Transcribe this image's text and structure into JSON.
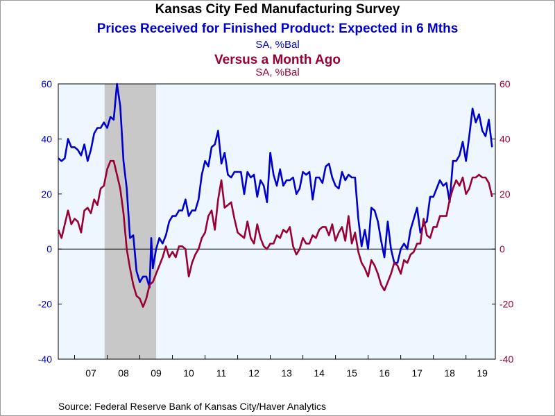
{
  "titles": {
    "main": "Kansas City Fed Manufacturing Survey",
    "series1": "Prices Received for Finished Product: Expected in 6 Mths",
    "series1_units": "SA, %Bal",
    "series2": "Versus a Month Ago",
    "series2_units": "SA, %Bal"
  },
  "source": "Source:  Federal Reserve Bank of Kansas City/Haver Analytics",
  "colors": {
    "series1": "#0000cc",
    "series2": "#990033",
    "plot_background": "#eef6ff",
    "recession": "#c8c8c8"
  },
  "chart_data": {
    "type": "line",
    "x_label_ticks": [
      "07",
      "08",
      "09",
      "10",
      "11",
      "12",
      "13",
      "14",
      "15",
      "16",
      "17",
      "18",
      "19"
    ],
    "x_range": [
      2006.5,
      2019.9
    ],
    "y_left": {
      "range": [
        -40,
        60
      ],
      "ticks": [
        "60",
        "40",
        "20",
        "0",
        "-20",
        "-40"
      ]
    },
    "y_right": {
      "range": [
        -40,
        60
      ],
      "ticks": [
        "60",
        "40",
        "20",
        "0",
        "-20",
        "-40"
      ]
    },
    "recession_shading": [
      2007.92,
      2009.5
    ],
    "zero_line": true,
    "series": [
      {
        "name": "Prices Received for Finished Product: Expected in 6 Mths",
        "axis": "left",
        "points": [
          [
            2006.5,
            33
          ],
          [
            2006.6,
            32
          ],
          [
            2006.7,
            33
          ],
          [
            2006.8,
            40
          ],
          [
            2006.9,
            37
          ],
          [
            2007.0,
            37
          ],
          [
            2007.1,
            36
          ],
          [
            2007.2,
            34
          ],
          [
            2007.3,
            38
          ],
          [
            2007.4,
            32
          ],
          [
            2007.5,
            36
          ],
          [
            2007.6,
            42
          ],
          [
            2007.7,
            44
          ],
          [
            2007.8,
            44
          ],
          [
            2007.9,
            46
          ],
          [
            2008.0,
            44
          ],
          [
            2008.1,
            48
          ],
          [
            2008.2,
            47
          ],
          [
            2008.3,
            60
          ],
          [
            2008.4,
            52
          ],
          [
            2008.5,
            32
          ],
          [
            2008.6,
            22
          ],
          [
            2008.7,
            4
          ],
          [
            2008.8,
            5
          ],
          [
            2008.9,
            -8
          ],
          [
            2009.0,
            -12
          ],
          [
            2009.1,
            -10
          ],
          [
            2009.2,
            -10
          ],
          [
            2009.3,
            -14
          ],
          [
            2009.35,
            4
          ],
          [
            2009.4,
            -7
          ],
          [
            2009.5,
            0
          ],
          [
            2009.6,
            4
          ],
          [
            2009.7,
            2
          ],
          [
            2009.8,
            5
          ],
          [
            2009.9,
            10
          ],
          [
            2010.0,
            12
          ],
          [
            2010.1,
            12
          ],
          [
            2010.2,
            14
          ],
          [
            2010.3,
            14
          ],
          [
            2010.4,
            18
          ],
          [
            2010.5,
            12
          ],
          [
            2010.6,
            14
          ],
          [
            2010.7,
            14
          ],
          [
            2010.8,
            18
          ],
          [
            2010.9,
            27
          ],
          [
            2011.0,
            32
          ],
          [
            2011.1,
            30
          ],
          [
            2011.2,
            37
          ],
          [
            2011.3,
            38
          ],
          [
            2011.4,
            43
          ],
          [
            2011.5,
            31
          ],
          [
            2011.6,
            35
          ],
          [
            2011.7,
            27
          ],
          [
            2011.8,
            26
          ],
          [
            2011.9,
            28
          ],
          [
            2012.0,
            28
          ],
          [
            2012.1,
            28
          ],
          [
            2012.2,
            20
          ],
          [
            2012.3,
            28
          ],
          [
            2012.4,
            26
          ],
          [
            2012.5,
            27
          ],
          [
            2012.6,
            19
          ],
          [
            2012.7,
            25
          ],
          [
            2012.8,
            23
          ],
          [
            2012.9,
            17
          ],
          [
            2013.0,
            35
          ],
          [
            2013.1,
            27
          ],
          [
            2013.2,
            23
          ],
          [
            2013.3,
            29
          ],
          [
            2013.4,
            23
          ],
          [
            2013.5,
            25
          ],
          [
            2013.6,
            25
          ],
          [
            2013.7,
            26
          ],
          [
            2013.8,
            20
          ],
          [
            2013.9,
            22
          ],
          [
            2014.0,
            28
          ],
          [
            2014.1,
            27
          ],
          [
            2014.2,
            28
          ],
          [
            2014.3,
            18
          ],
          [
            2014.4,
            26
          ],
          [
            2014.5,
            26
          ],
          [
            2014.6,
            24
          ],
          [
            2014.7,
            30
          ],
          [
            2014.8,
            31
          ],
          [
            2014.9,
            26
          ],
          [
            2015.0,
            23
          ],
          [
            2015.1,
            22
          ],
          [
            2015.2,
            28
          ],
          [
            2015.3,
            25
          ],
          [
            2015.4,
            27
          ],
          [
            2015.5,
            26
          ],
          [
            2015.6,
            26
          ],
          [
            2015.7,
            11
          ],
          [
            2015.8,
            1
          ],
          [
            2015.9,
            7
          ],
          [
            2016.0,
            0
          ],
          [
            2016.1,
            15
          ],
          [
            2016.2,
            14
          ],
          [
            2016.3,
            10
          ],
          [
            2016.4,
            3
          ],
          [
            2016.5,
            -3
          ],
          [
            2016.6,
            10
          ],
          [
            2016.7,
            0
          ],
          [
            2016.8,
            -5
          ],
          [
            2016.9,
            -5
          ],
          [
            2017.0,
            0
          ],
          [
            2017.1,
            2
          ],
          [
            2017.2,
            0
          ],
          [
            2017.3,
            7
          ],
          [
            2017.4,
            11
          ],
          [
            2017.5,
            15
          ],
          [
            2017.6,
            6
          ],
          [
            2017.7,
            9
          ],
          [
            2017.8,
            10
          ],
          [
            2017.9,
            19
          ],
          [
            2018.0,
            19
          ],
          [
            2018.1,
            22
          ],
          [
            2018.2,
            25
          ],
          [
            2018.3,
            23
          ],
          [
            2018.4,
            24
          ],
          [
            2018.5,
            17
          ],
          [
            2018.6,
            32
          ],
          [
            2018.7,
            32
          ],
          [
            2018.8,
            34
          ],
          [
            2018.9,
            39
          ],
          [
            2019.0,
            32
          ],
          [
            2019.1,
            41
          ],
          [
            2019.2,
            51
          ],
          [
            2019.3,
            46
          ],
          [
            2019.4,
            49
          ],
          [
            2019.5,
            43
          ],
          [
            2019.6,
            41
          ],
          [
            2019.7,
            47
          ],
          [
            2019.8,
            37
          ]
        ]
      },
      {
        "name": "Versus a Month Ago",
        "axis": "right",
        "points": [
          [
            2006.5,
            7
          ],
          [
            2006.6,
            4
          ],
          [
            2006.7,
            9
          ],
          [
            2006.8,
            14
          ],
          [
            2006.9,
            9
          ],
          [
            2007.0,
            11
          ],
          [
            2007.1,
            10
          ],
          [
            2007.2,
            6
          ],
          [
            2007.3,
            14
          ],
          [
            2007.4,
            15
          ],
          [
            2007.5,
            13
          ],
          [
            2007.6,
            18
          ],
          [
            2007.7,
            16
          ],
          [
            2007.8,
            22
          ],
          [
            2007.9,
            23
          ],
          [
            2008.0,
            29
          ],
          [
            2008.1,
            32
          ],
          [
            2008.2,
            32
          ],
          [
            2008.3,
            27
          ],
          [
            2008.4,
            22
          ],
          [
            2008.5,
            13
          ],
          [
            2008.6,
            0
          ],
          [
            2008.7,
            -7
          ],
          [
            2008.8,
            -13
          ],
          [
            2008.9,
            -17
          ],
          [
            2009.0,
            -18
          ],
          [
            2009.1,
            -21
          ],
          [
            2009.2,
            -18
          ],
          [
            2009.3,
            -13
          ],
          [
            2009.4,
            -12
          ],
          [
            2009.5,
            -9
          ],
          [
            2009.6,
            -6
          ],
          [
            2009.7,
            -3
          ],
          [
            2009.8,
            1
          ],
          [
            2009.9,
            -3
          ],
          [
            2010.0,
            -1
          ],
          [
            2010.1,
            -3
          ],
          [
            2010.2,
            1
          ],
          [
            2010.3,
            1
          ],
          [
            2010.4,
            0
          ],
          [
            2010.5,
            -10
          ],
          [
            2010.6,
            -5
          ],
          [
            2010.7,
            -2
          ],
          [
            2010.8,
            0
          ],
          [
            2010.9,
            4
          ],
          [
            2011.0,
            6
          ],
          [
            2011.1,
            12
          ],
          [
            2011.2,
            14
          ],
          [
            2011.3,
            7
          ],
          [
            2011.4,
            18
          ],
          [
            2011.5,
            25
          ],
          [
            2011.6,
            15
          ],
          [
            2011.7,
            16
          ],
          [
            2011.8,
            17
          ],
          [
            2011.9,
            11
          ],
          [
            2012.0,
            6
          ],
          [
            2012.1,
            5
          ],
          [
            2012.2,
            4
          ],
          [
            2012.3,
            10
          ],
          [
            2012.4,
            4
          ],
          [
            2012.5,
            2
          ],
          [
            2012.6,
            9
          ],
          [
            2012.7,
            4
          ],
          [
            2012.8,
            1
          ],
          [
            2012.9,
            0
          ],
          [
            2013.0,
            2
          ],
          [
            2013.1,
            2
          ],
          [
            2013.2,
            5
          ],
          [
            2013.3,
            4
          ],
          [
            2013.4,
            7
          ],
          [
            2013.5,
            6
          ],
          [
            2013.6,
            8
          ],
          [
            2013.7,
            1
          ],
          [
            2013.8,
            -2
          ],
          [
            2013.9,
            0
          ],
          [
            2014.0,
            4
          ],
          [
            2014.1,
            2
          ],
          [
            2014.2,
            2
          ],
          [
            2014.3,
            5
          ],
          [
            2014.4,
            4
          ],
          [
            2014.5,
            7
          ],
          [
            2014.6,
            8
          ],
          [
            2014.7,
            8
          ],
          [
            2014.8,
            5
          ],
          [
            2014.9,
            9
          ],
          [
            2015.0,
            3
          ],
          [
            2015.1,
            6
          ],
          [
            2015.2,
            8
          ],
          [
            2015.3,
            3
          ],
          [
            2015.4,
            12
          ],
          [
            2015.5,
            2
          ],
          [
            2015.6,
            6
          ],
          [
            2015.7,
            -1
          ],
          [
            2015.8,
            -5
          ],
          [
            2015.9,
            -7
          ],
          [
            2016.0,
            -10
          ],
          [
            2016.1,
            -4
          ],
          [
            2016.2,
            -6
          ],
          [
            2016.3,
            -9
          ],
          [
            2016.4,
            -13
          ],
          [
            2016.5,
            -15
          ],
          [
            2016.6,
            -12
          ],
          [
            2016.7,
            -9
          ],
          [
            2016.8,
            -5
          ],
          [
            2016.9,
            -6
          ],
          [
            2017.0,
            -9
          ],
          [
            2017.1,
            -4
          ],
          [
            2017.2,
            -5
          ],
          [
            2017.3,
            -2
          ],
          [
            2017.4,
            -1
          ],
          [
            2017.5,
            2
          ],
          [
            2017.6,
            2
          ],
          [
            2017.7,
            11
          ],
          [
            2017.8,
            5
          ],
          [
            2017.9,
            4
          ],
          [
            2018.0,
            8
          ],
          [
            2018.1,
            8
          ],
          [
            2018.2,
            12
          ],
          [
            2018.3,
            12
          ],
          [
            2018.4,
            12
          ],
          [
            2018.5,
            18
          ],
          [
            2018.6,
            22
          ],
          [
            2018.7,
            25
          ],
          [
            2018.8,
            23
          ],
          [
            2018.9,
            26
          ],
          [
            2019.0,
            20
          ],
          [
            2019.1,
            22
          ],
          [
            2019.2,
            26
          ],
          [
            2019.3,
            26
          ],
          [
            2019.4,
            27
          ],
          [
            2019.5,
            26
          ],
          [
            2019.6,
            26
          ],
          [
            2019.7,
            24
          ],
          [
            2019.8,
            19
          ]
        ]
      }
    ]
  }
}
